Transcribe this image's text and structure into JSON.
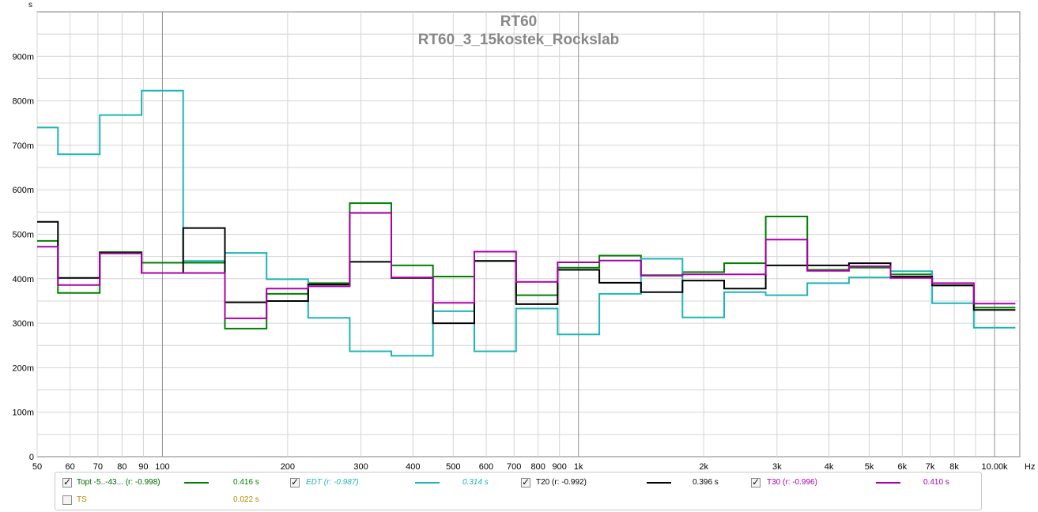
{
  "chart_data": {
    "type": "line",
    "step": true,
    "title": "RT60",
    "subtitle": "RT60_3_15kostek_Rockslab",
    "y_unit": "s",
    "x_unit": "Hz",
    "x_scale": "log",
    "xlim": [
      50,
      11500
    ],
    "ylim": [
      0,
      1.0
    ],
    "grid": true,
    "x_ticks": [
      {
        "v": 50,
        "label": "50"
      },
      {
        "v": 60,
        "label": "60"
      },
      {
        "v": 70,
        "label": "70"
      },
      {
        "v": 80,
        "label": "80"
      },
      {
        "v": 90,
        "label": "90"
      },
      {
        "v": 100,
        "label": "100"
      },
      {
        "v": 200,
        "label": "200"
      },
      {
        "v": 300,
        "label": "300"
      },
      {
        "v": 400,
        "label": "400"
      },
      {
        "v": 500,
        "label": "500"
      },
      {
        "v": 600,
        "label": "600"
      },
      {
        "v": 700,
        "label": "700"
      },
      {
        "v": 800,
        "label": "800"
      },
      {
        "v": 900,
        "label": "900"
      },
      {
        "v": 1000,
        "label": "1k"
      },
      {
        "v": 2000,
        "label": "2k"
      },
      {
        "v": 3000,
        "label": "3k"
      },
      {
        "v": 4000,
        "label": "4k"
      },
      {
        "v": 5000,
        "label": "5k"
      },
      {
        "v": 6000,
        "label": "6k"
      },
      {
        "v": 7000,
        "label": "7k"
      },
      {
        "v": 8000,
        "label": "8k"
      },
      {
        "v": 10000,
        "label": "10.00k"
      }
    ],
    "y_ticks": [
      {
        "v": 0,
        "label": "0"
      },
      {
        "v": 0.1,
        "label": "100m"
      },
      {
        "v": 0.2,
        "label": "200m"
      },
      {
        "v": 0.3,
        "label": "300m"
      },
      {
        "v": 0.4,
        "label": "400m"
      },
      {
        "v": 0.5,
        "label": "500m"
      },
      {
        "v": 0.6,
        "label": "600m"
      },
      {
        "v": 0.7,
        "label": "700m"
      },
      {
        "v": 0.8,
        "label": "800m"
      },
      {
        "v": 0.9,
        "label": "900m"
      }
    ],
    "band_edges": [
      50,
      56.1,
      70.7,
      89.1,
      112.2,
      141.3,
      178,
      224,
      282,
      355,
      447,
      562,
      708,
      891,
      1122,
      1413,
      1778,
      2239,
      2818,
      3548,
      4467,
      5623,
      7079,
      8913,
      11220
    ],
    "series": [
      {
        "name": "Topt -5..-43...",
        "color": "#008000",
        "values": [
          0.485,
          0.368,
          0.46,
          0.436,
          0.436,
          0.288,
          0.366,
          0.39,
          0.57,
          0.43,
          0.405,
          0.44,
          0.363,
          0.425,
          0.452,
          0.408,
          0.415,
          0.435,
          0.54,
          0.42,
          0.425,
          0.41,
          0.385,
          0.335
        ]
      },
      {
        "name": "EDT",
        "color": "#1fb5b5",
        "values": [
          0.74,
          0.68,
          0.768,
          0.823,
          0.44,
          0.458,
          0.399,
          0.312,
          0.237,
          0.227,
          0.327,
          0.237,
          0.333,
          0.275,
          0.366,
          0.445,
          0.313,
          0.37,
          0.363,
          0.39,
          0.403,
          0.417,
          0.345,
          0.29
        ]
      },
      {
        "name": "T20",
        "color": "#000000",
        "values": [
          0.528,
          0.402,
          0.458,
          0.413,
          0.514,
          0.347,
          0.35,
          0.387,
          0.438,
          0.402,
          0.3,
          0.44,
          0.343,
          0.42,
          0.391,
          0.37,
          0.396,
          0.378,
          0.43,
          0.43,
          0.435,
          0.405,
          0.385,
          0.33
        ]
      },
      {
        "name": "T30",
        "color": "#aa00aa",
        "values": [
          0.472,
          0.386,
          0.457,
          0.413,
          0.413,
          0.311,
          0.378,
          0.383,
          0.548,
          0.403,
          0.346,
          0.461,
          0.393,
          0.437,
          0.441,
          0.407,
          0.41,
          0.41,
          0.488,
          0.418,
          0.428,
          0.402,
          0.39,
          0.344
        ]
      }
    ]
  },
  "legend": [
    {
      "checked": true,
      "label": "Topt -5..-43... (r: -0.998)",
      "value": "0.416 s",
      "color": "#008000",
      "italic": false,
      "label_color": "#006600",
      "value_color": "#008000"
    },
    {
      "checked": true,
      "label": "EDT (r: -0.987)",
      "value": "0.314 s",
      "color": "#1fb5b5",
      "italic": true,
      "label_color": "#1fb5b5",
      "value_color": "#1fb5b5"
    },
    {
      "checked": true,
      "label": "T20 (r: -0.992)",
      "value": "0.396 s",
      "color": "#000000",
      "italic": false,
      "label_color": "#000000",
      "value_color": "#000000"
    },
    {
      "checked": true,
      "label": "T30 (r: -0.996)",
      "value": "0.410 s",
      "color": "#aa00aa",
      "italic": false,
      "label_color": "#aa00aa",
      "value_color": "#aa00aa"
    },
    {
      "checked": false,
      "label": "TS",
      "value": "0.022 s",
      "color": "",
      "italic": false,
      "label_color": "#b08a00",
      "value_color": "#b08a00"
    }
  ]
}
